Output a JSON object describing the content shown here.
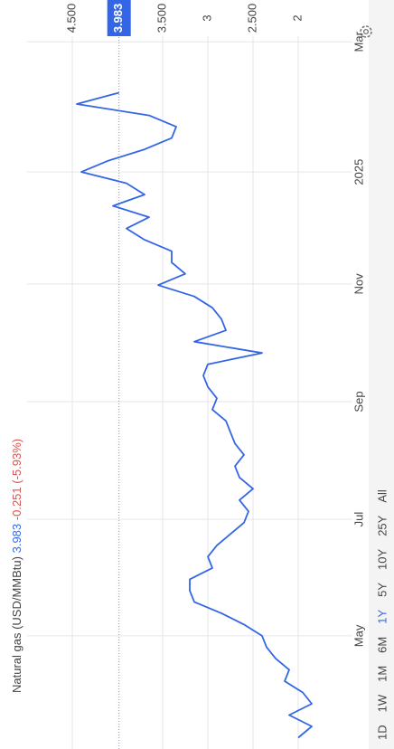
{
  "chart_data": {
    "type": "line",
    "title": "Natural gas (USD/MMBtu)",
    "last_value": 3.983,
    "change": "-0.251 (-5.93%)",
    "color": "#3366e6",
    "change_color": "#d9534f",
    "values": [
      2.0,
      1.85,
      2.1,
      1.85,
      1.95,
      2.15,
      2.1,
      2.25,
      2.35,
      2.4,
      2.6,
      2.85,
      3.15,
      3.2,
      3.2,
      2.95,
      3.0,
      2.9,
      2.75,
      2.6,
      2.55,
      2.65,
      2.5,
      2.65,
      2.7,
      2.6,
      2.7,
      2.75,
      2.8,
      2.95,
      2.9,
      3.0,
      3.05,
      3.0,
      2.4,
      3.15,
      2.8,
      2.85,
      2.95,
      3.15,
      3.55,
      3.25,
      3.4,
      3.4,
      3.7,
      3.9,
      3.65,
      4.05,
      3.7,
      3.9,
      4.4,
      4.1,
      3.7,
      3.4,
      3.35,
      3.65,
      4.45,
      3.983
    ],
    "xlim": [
      -1,
      62
    ],
    "xticks": [
      {
        "value": 9,
        "label": "May"
      },
      {
        "value": 19.3,
        "label": "Jul"
      },
      {
        "value": 29.7,
        "label": "Sep"
      },
      {
        "value": 40.1,
        "label": "Nov"
      },
      {
        "value": 50,
        "label": "2025"
      },
      {
        "value": 61.5,
        "label": "Mar"
      }
    ],
    "ylim": [
      1.7,
      4.8
    ],
    "yticks": [
      2,
      {
        "value": 2.5,
        "label": "2.500"
      },
      3,
      {
        "value": 3.5,
        "label": "3.500"
      },
      {
        "value": 4.5,
        "label": "4.500"
      }
    ],
    "grid": true,
    "ranges": [
      "1D",
      "1W",
      "1M",
      "6M",
      "1Y",
      "5Y",
      "10Y",
      "25Y",
      "All"
    ],
    "selected_range": 4
  }
}
